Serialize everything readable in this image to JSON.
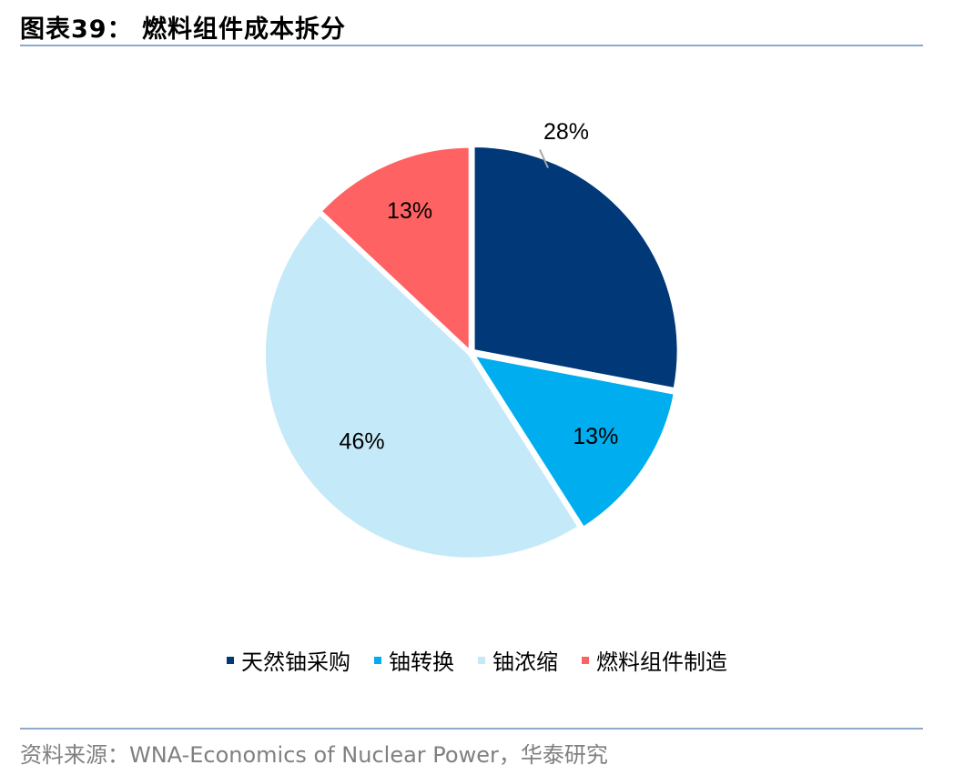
{
  "header": {
    "title": "图表39： 燃料组件成本拆分"
  },
  "chart_data": {
    "type": "pie",
    "slices": [
      {
        "name": "天然铀采购",
        "value": 28,
        "label": "28%",
        "color": "#003878"
      },
      {
        "name": "铀转换",
        "value": 13,
        "label": "13%",
        "color": "#00aeef"
      },
      {
        "name": "铀浓缩",
        "value": 46,
        "label": "46%",
        "color": "#c4e9f8"
      },
      {
        "name": "燃料组件制造",
        "value": 13,
        "label": "13%",
        "color": "#ff6262"
      }
    ],
    "legend_position": "bottom"
  },
  "footer": {
    "source": "资料来源：WNA-Economics of Nuclear Power，华泰研究"
  }
}
